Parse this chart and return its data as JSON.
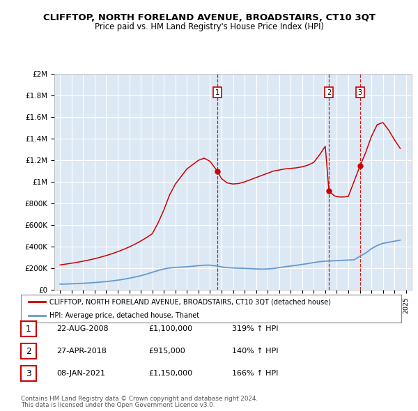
{
  "title": "CLIFFTOP, NORTH FORELAND AVENUE, BROADSTAIRS, CT10 3QT",
  "subtitle": "Price paid vs. HM Land Registry's House Price Index (HPI)",
  "bg_color": "#dce9f5",
  "red_color": "#cc0000",
  "blue_color": "#6699cc",
  "ylim": [
    0,
    2000000
  ],
  "yticks": [
    0,
    200000,
    400000,
    600000,
    800000,
    1000000,
    1200000,
    1400000,
    1600000,
    1800000,
    2000000
  ],
  "ytick_labels": [
    "£0",
    "£200K",
    "£400K",
    "£600K",
    "£800K",
    "£1M",
    "£1.2M",
    "£1.4M",
    "£1.6M",
    "£1.8M",
    "£2M"
  ],
  "sales": [
    {
      "num": 1,
      "date": "22-AUG-2008",
      "price": 1100000,
      "year": 2008.64,
      "hpi_pct": "319%",
      "arrow": "↑"
    },
    {
      "num": 2,
      "date": "27-APR-2018",
      "price": 915000,
      "year": 2018.32,
      "hpi_pct": "140%",
      "arrow": "↑"
    },
    {
      "num": 3,
      "date": "08-JAN-2021",
      "price": 1150000,
      "year": 2021.02,
      "hpi_pct": "166%",
      "arrow": "↑"
    }
  ],
  "legend_red_label": "CLIFFTOP, NORTH FORELAND AVENUE, BROADSTAIRS, CT10 3QT (detached house)",
  "legend_blue_label": "HPI: Average price, detached house, Thanet",
  "footer1": "Contains HM Land Registry data © Crown copyright and database right 2024.",
  "footer2": "This data is licensed under the Open Government Licence v3.0.",
  "hpi_x": [
    1995,
    1995.5,
    1996,
    1996.5,
    1997,
    1997.5,
    1998,
    1998.5,
    1999,
    1999.5,
    2000,
    2000.5,
    2001,
    2001.5,
    2002,
    2002.5,
    2003,
    2003.5,
    2004,
    2004.5,
    2005,
    2005.5,
    2006,
    2006.5,
    2007,
    2007.5,
    2008,
    2008.5,
    2009,
    2009.5,
    2010,
    2010.5,
    2011,
    2011.5,
    2012,
    2012.5,
    2013,
    2013.5,
    2014,
    2014.5,
    2015,
    2015.5,
    2016,
    2016.5,
    2017,
    2017.5,
    2018,
    2018.5,
    2019,
    2019.5,
    2020,
    2020.5,
    2021,
    2021.5,
    2022,
    2022.5,
    2023,
    2023.5,
    2024,
    2024.5
  ],
  "hpi_y": [
    52000,
    53000,
    55000,
    57000,
    60000,
    63000,
    67000,
    71000,
    76000,
    82000,
    89000,
    97000,
    107000,
    118000,
    130000,
    145000,
    162000,
    178000,
    193000,
    202000,
    207000,
    210000,
    213000,
    218000,
    223000,
    228000,
    228000,
    222000,
    212000,
    205000,
    202000,
    200000,
    198000,
    196000,
    193000,
    192000,
    193000,
    197000,
    205000,
    213000,
    220000,
    227000,
    235000,
    243000,
    252000,
    260000,
    265000,
    267000,
    270000,
    273000,
    275000,
    278000,
    310000,
    340000,
    380000,
    410000,
    430000,
    440000,
    450000,
    460000
  ],
  "red_x": [
    1995.0,
    1995.5,
    1996.0,
    1996.5,
    1997.0,
    1997.5,
    1998.0,
    1998.5,
    1999.0,
    1999.5,
    2000.0,
    2000.5,
    2001.0,
    2001.5,
    2002.0,
    2002.5,
    2003.0,
    2003.5,
    2004.0,
    2004.5,
    2005.0,
    2005.5,
    2006.0,
    2006.5,
    2007.0,
    2007.5,
    2008.0,
    2008.64,
    2009.0,
    2009.5,
    2010.0,
    2010.5,
    2011.0,
    2011.5,
    2012.0,
    2012.5,
    2013.0,
    2013.5,
    2014.0,
    2014.5,
    2015.0,
    2015.5,
    2016.0,
    2016.5,
    2017.0,
    2017.5,
    2018.0,
    2018.32,
    2018.8,
    2019.2,
    2019.6,
    2020.0,
    2021.02,
    2021.5,
    2022.0,
    2022.5,
    2023.0,
    2023.5,
    2024.0,
    2024.5
  ],
  "red_y": [
    230000,
    238000,
    246000,
    255000,
    265000,
    276000,
    288000,
    302000,
    317000,
    334000,
    353000,
    374000,
    397000,
    423000,
    452000,
    484000,
    520000,
    620000,
    740000,
    880000,
    980000,
    1050000,
    1120000,
    1160000,
    1200000,
    1220000,
    1190000,
    1100000,
    1030000,
    990000,
    980000,
    985000,
    1000000,
    1020000,
    1040000,
    1060000,
    1080000,
    1100000,
    1110000,
    1120000,
    1125000,
    1130000,
    1140000,
    1155000,
    1180000,
    1250000,
    1330000,
    915000,
    870000,
    860000,
    860000,
    865000,
    1150000,
    1270000,
    1420000,
    1530000,
    1550000,
    1480000,
    1390000,
    1310000
  ]
}
